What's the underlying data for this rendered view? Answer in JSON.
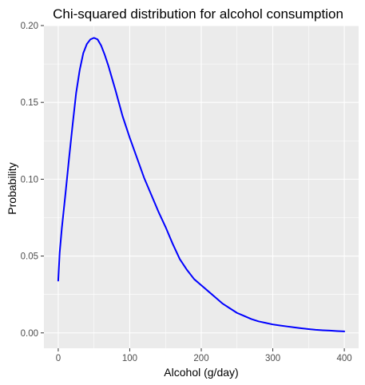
{
  "chart_data": {
    "type": "line",
    "title": "Chi-squared distribution for alcohol consumption",
    "xlabel": "Alcohol (g/day)",
    "ylabel": "Probability",
    "xlim": [
      -20,
      420
    ],
    "ylim": [
      -0.01,
      0.2
    ],
    "x_ticks": [
      0,
      100,
      200,
      300,
      400
    ],
    "x_tick_labels": [
      "0",
      "100",
      "200",
      "300",
      "400"
    ],
    "y_ticks": [
      0.0,
      0.05,
      0.1,
      0.15,
      0.2
    ],
    "y_tick_labels": [
      "0.00",
      "0.05",
      "0.10",
      "0.15",
      "0.20"
    ],
    "grid": true,
    "panel_background": "#ebebeb",
    "grid_color": "#ffffff",
    "line_color": "#0000ff",
    "series": [
      {
        "x": [
          0,
          2,
          5,
          10,
          15,
          20,
          25,
          30,
          35,
          40,
          45,
          50,
          55,
          60,
          65,
          70,
          75,
          80,
          90,
          100,
          110,
          120,
          130,
          140,
          150,
          160,
          170,
          180,
          190,
          200,
          210,
          220,
          230,
          240,
          250,
          260,
          270,
          280,
          290,
          300,
          310,
          320,
          330,
          340,
          350,
          360,
          370,
          380,
          390,
          400
        ],
        "y": [
          0.034,
          0.052,
          0.068,
          0.09,
          0.113,
          0.135,
          0.156,
          0.171,
          0.182,
          0.188,
          0.191,
          0.192,
          0.191,
          0.187,
          0.181,
          0.174,
          0.166,
          0.158,
          0.141,
          0.127,
          0.114,
          0.101,
          0.09,
          0.079,
          0.069,
          0.058,
          0.048,
          0.041,
          0.035,
          0.031,
          0.027,
          0.023,
          0.019,
          0.016,
          0.013,
          0.011,
          0.009,
          0.0075,
          0.0065,
          0.0055,
          0.0048,
          0.0042,
          0.0036,
          0.003,
          0.0025,
          0.002,
          0.0017,
          0.0015,
          0.0012,
          0.001
        ]
      }
    ]
  }
}
